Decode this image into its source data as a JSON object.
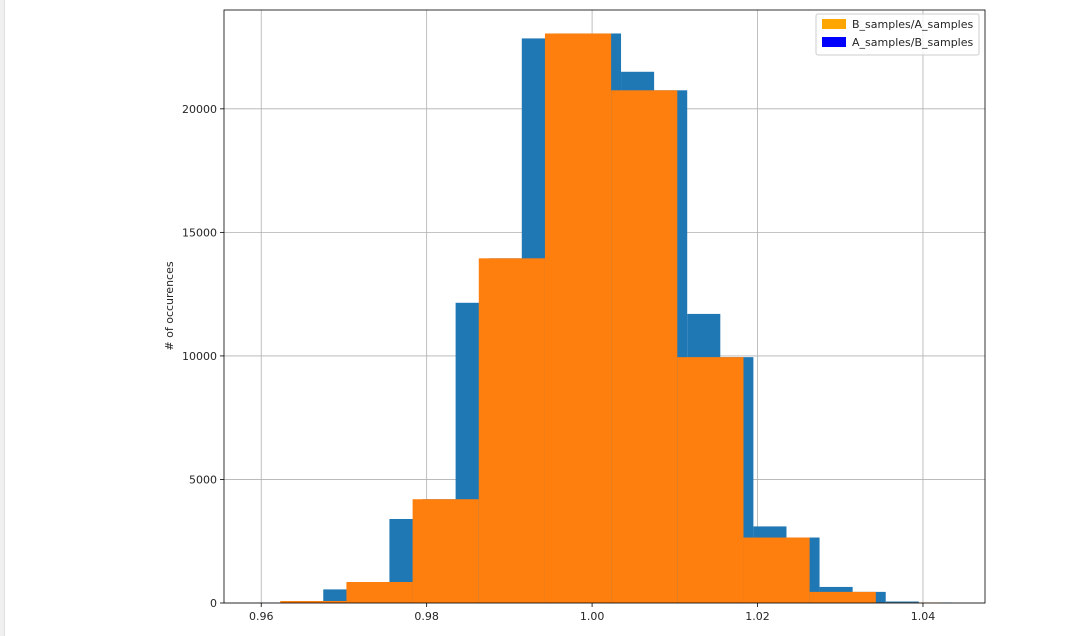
{
  "chart_data": {
    "type": "bar",
    "ylabel": "# of occurences",
    "xlim": [
      0.9555,
      1.0475
    ],
    "ylim": [
      0,
      24000
    ],
    "x_ticks": [
      0.96,
      0.98,
      1.0,
      1.02,
      1.04
    ],
    "x_tick_labels": [
      "0.96",
      "0.98",
      "1.00",
      "1.02",
      "1.04"
    ],
    "y_ticks": [
      0,
      5000,
      10000,
      15000,
      20000
    ],
    "y_tick_labels": [
      "0",
      "5000",
      "10000",
      "15000",
      "20000"
    ],
    "grid": true,
    "legend_position": "top-right",
    "legend": [
      {
        "label": "B_samples/A_samples",
        "color": "#ffa500"
      },
      {
        "label": "A_samples/B_samples",
        "color": "#0000ff"
      }
    ],
    "series": [
      {
        "color": "#1f77b4",
        "bins": [
          {
            "x0": 0.9595,
            "x1": 0.9635,
            "count": 10
          },
          {
            "x0": 0.9635,
            "x1": 0.9675,
            "count": 80
          },
          {
            "x0": 0.9675,
            "x1": 0.9715,
            "count": 550
          },
          {
            "x0": 0.9715,
            "x1": 0.9755,
            "count": 850
          },
          {
            "x0": 0.9755,
            "x1": 0.9795,
            "count": 3400
          },
          {
            "x0": 0.9795,
            "x1": 0.9835,
            "count": 4200
          },
          {
            "x0": 0.9835,
            "x1": 0.9875,
            "count": 12150
          },
          {
            "x0": 0.9875,
            "x1": 0.9915,
            "count": 13950
          },
          {
            "x0": 0.9915,
            "x1": 0.9955,
            "count": 22850
          },
          {
            "x0": 0.9955,
            "x1": 0.9995,
            "count": 23050
          },
          {
            "x0": 0.9995,
            "x1": 1.0035,
            "count": 23050
          },
          {
            "x0": 1.0035,
            "x1": 1.0075,
            "count": 21500
          },
          {
            "x0": 1.0075,
            "x1": 1.0115,
            "count": 20750
          },
          {
            "x0": 1.0115,
            "x1": 1.0155,
            "count": 11700
          },
          {
            "x0": 1.0155,
            "x1": 1.0195,
            "count": 9950
          },
          {
            "x0": 1.0195,
            "x1": 1.0235,
            "count": 3100
          },
          {
            "x0": 1.0235,
            "x1": 1.0275,
            "count": 2650
          },
          {
            "x0": 1.0275,
            "x1": 1.0315,
            "count": 650
          },
          {
            "x0": 1.0315,
            "x1": 1.0355,
            "count": 450
          },
          {
            "x0": 1.0355,
            "x1": 1.0395,
            "count": 60
          },
          {
            "x0": 1.0395,
            "x1": 1.0435,
            "count": 20
          }
        ]
      },
      {
        "color": "#ff7f0e",
        "bins": [
          {
            "x0": 0.9623,
            "x1": 0.9703,
            "count": 80
          },
          {
            "x0": 0.9703,
            "x1": 0.9783,
            "count": 850
          },
          {
            "x0": 0.9783,
            "x1": 0.9863,
            "count": 4200
          },
          {
            "x0": 0.9863,
            "x1": 0.9943,
            "count": 13950
          },
          {
            "x0": 0.9943,
            "x1": 1.0023,
            "count": 23050
          },
          {
            "x0": 1.0023,
            "x1": 1.0103,
            "count": 20750
          },
          {
            "x0": 1.0103,
            "x1": 1.0183,
            "count": 9950
          },
          {
            "x0": 1.0183,
            "x1": 1.0263,
            "count": 2650
          },
          {
            "x0": 1.0263,
            "x1": 1.0343,
            "count": 450
          },
          {
            "x0": 1.0343,
            "x1": 1.0423,
            "count": 20
          }
        ]
      }
    ]
  }
}
